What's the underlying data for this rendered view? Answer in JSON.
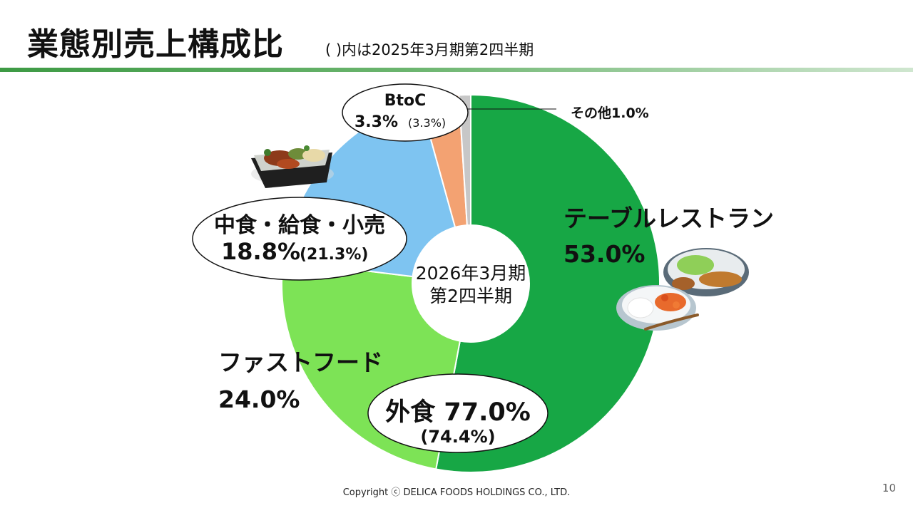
{
  "page": {
    "title": "業態別売上構成比",
    "subtitle": "(  )内は2025年3月期第2四半期",
    "footer": "Copyright ⓒ DELICA FOODS HOLDINGS CO., LTD.",
    "page_number": "10"
  },
  "chart_data": {
    "type": "pie",
    "center_label": [
      "2026年3月期",
      "第2四半期"
    ],
    "slices": [
      {
        "name": "テーブルレストラン",
        "value": 53.0,
        "color": "#17a745"
      },
      {
        "name": "ファストフード",
        "value": 24.0,
        "color": "#7de356"
      },
      {
        "name": "中食・給食・小売",
        "value": 18.8,
        "prior": 21.3,
        "color": "#7ec4f1"
      },
      {
        "name": "BtoC",
        "value": 3.3,
        "prior": 3.3,
        "color": "#f3a272"
      },
      {
        "name": "その他",
        "value": 1.0,
        "color": "#c7c7c7"
      }
    ],
    "labels": {
      "table_restaurant": {
        "name": "テーブルレストラン",
        "value": "53.0%"
      },
      "fast_food": {
        "name": "ファストフード",
        "value": "24.0%"
      },
      "nakashoku": {
        "name": "中食・給食・小売",
        "value": "18.8%",
        "prior": "(21.3%)"
      },
      "btoc": {
        "name": "BtoC",
        "value": "3.3%",
        "prior": "(3.3%)"
      },
      "other": {
        "name": "その他",
        "value": "1.0%"
      },
      "gaishoku": {
        "name": "外食",
        "value": "77.0%",
        "prior": "(74.4%)"
      }
    }
  },
  "images": {
    "bento_photo": "bento-food-photo",
    "restaurant_photo": "restaurant-dishes-photo"
  }
}
